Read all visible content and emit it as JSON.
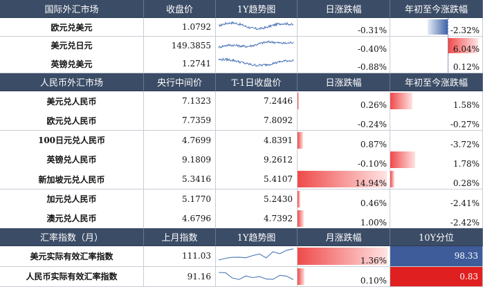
{
  "section1": {
    "headers": [
      "国际外汇市场",
      "收盘价",
      "1Y趋势图",
      "日涨跌幅",
      "年初至今涨跌幅"
    ],
    "rows": [
      {
        "name": "欧元兑美元",
        "close": "1.0792",
        "day": "-0.31%",
        "day_v": -0.31,
        "ytd": "-2.32%",
        "ytd_v": -2.32
      },
      {
        "name": "美元兑日元",
        "close": "149.3855",
        "day": "-0.40%",
        "day_v": -0.4,
        "ytd": "6.04%",
        "ytd_v": 6.04
      },
      {
        "name": "英镑兑美元",
        "close": "1.2741",
        "day": "-0.88%",
        "day_v": -0.88,
        "ytd": "0.12%",
        "ytd_v": 0.12
      }
    ]
  },
  "section2": {
    "headers": [
      "人民币外汇市场",
      "央行中间价",
      "T-1日收盘价",
      "日涨跌幅",
      "年初至今涨跌幅"
    ],
    "rows": [
      {
        "name": "美元兑人民币",
        "mid": "7.1323",
        "prev": "7.2446",
        "day": "0.26%",
        "day_v": 0.26,
        "ytd": "1.58%",
        "ytd_v": 1.58
      },
      {
        "name": "欧元兑人民币",
        "mid": "7.7359",
        "prev": "7.8092",
        "day": "-0.24%",
        "day_v": -0.24,
        "ytd": "-0.27%",
        "ytd_v": -0.27
      },
      {
        "name": "100日元兑人民币",
        "mid": "4.7699",
        "prev": "4.8391",
        "day": "0.87%",
        "day_v": 0.87,
        "ytd": "-3.72%",
        "ytd_v": -3.72
      },
      {
        "name": "英镑兑人民币",
        "mid": "9.1809",
        "prev": "9.2612",
        "day": "-0.10%",
        "day_v": -0.1,
        "ytd": "1.78%",
        "ytd_v": 1.78
      },
      {
        "name": "新加坡元兑人民币",
        "mid": "5.3416",
        "prev": "5.4107",
        "day": "14.94%",
        "day_v": 14.94,
        "ytd": "0.28%",
        "ytd_v": 0.28
      },
      {
        "name": "加元兑人民币",
        "mid": "5.1770",
        "prev": "5.2430",
        "day": "0.46%",
        "day_v": 0.46,
        "ytd": "-2.41%",
        "ytd_v": -2.41
      },
      {
        "name": "澳元兑人民币",
        "mid": "4.6796",
        "prev": "4.7392",
        "day": "1.00%",
        "day_v": 1.0,
        "ytd": "-2.42%",
        "ytd_v": -2.42
      }
    ]
  },
  "section3": {
    "headers": [
      "汇率指数（月）",
      "上月指数",
      "1Y趋势图",
      "月涨跌幅",
      "10Y分位"
    ],
    "rows": [
      {
        "name": "美元实际有效汇率指数",
        "last": "111.03",
        "month": "1.36%",
        "month_v": 1.36,
        "pct": "98.33",
        "pct_v": 98.33
      },
      {
        "name": "人民币实际有效汇率指数",
        "last": "91.16",
        "month": "0.10%",
        "month_v": 0.1,
        "pct": "0.83",
        "pct_v": 0.83
      }
    ]
  },
  "colors": {
    "header_bg": "#3b4c66",
    "positive": "#ef4a4a",
    "negative": "#3f62a6",
    "spark_line": "#4a74b8"
  }
}
